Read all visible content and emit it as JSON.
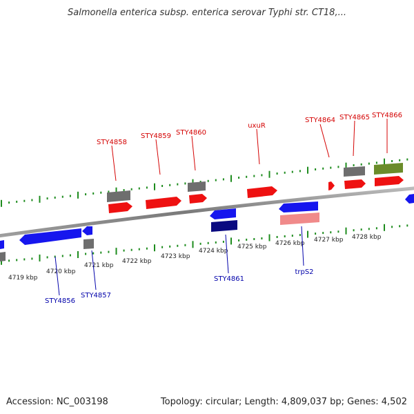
{
  "title": "Salmonella enterica subsp. enterica serovar Typhi str. CT18,...",
  "accession": "Accession: NC_003198",
  "topology": "Topology: circular; Length: 4,809,037 bp; Genes: 4,502",
  "colors": {
    "forward_label": "#d40000",
    "reverse_label": "#0000aa",
    "ticks": "#1e8c1e",
    "backbone": "#888888",
    "red_gene": "#ee1111",
    "blue_gene": "#1616ee",
    "gray_gene": "#6e6e6e",
    "olive_gene": "#6b8c2a",
    "navy_gene": "#0a0a80",
    "pink_gene": "#f08a8a"
  },
  "ticks": [
    "4719 kbp",
    "4720 kbp",
    "4721 kbp",
    "4722 kbp",
    "4723 kbp",
    "4724 kbp",
    "4725 kbp",
    "4726 kbp",
    "4727 kbp",
    "4728 kbp"
  ],
  "forward_labels": [
    "STY4858",
    "STY4859",
    "STY4860",
    "uxuR",
    "STY4864",
    "STY4865",
    "STY4866"
  ],
  "reverse_labels": [
    "STY4856",
    "STY4857",
    "STY4861",
    "trpS2"
  ]
}
